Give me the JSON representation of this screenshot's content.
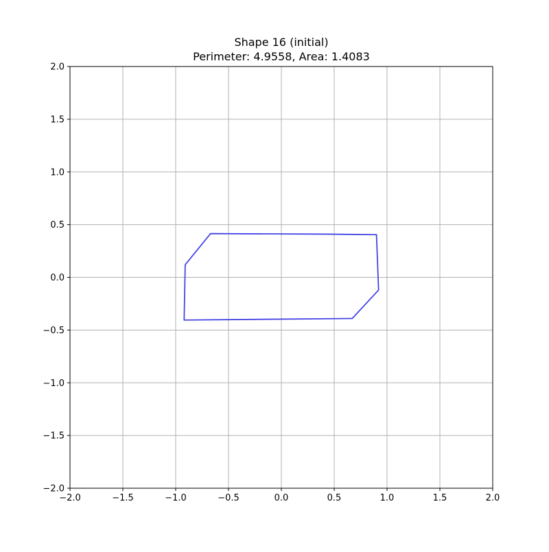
{
  "chart_data": {
    "type": "line",
    "title_line1": "Shape 16 (initial)",
    "title_line2": "Perimeter: 4.9558, Area: 1.4083",
    "xlabel": "",
    "ylabel": "",
    "xlim": [
      -2.0,
      2.0
    ],
    "ylim": [
      -2.0,
      2.0
    ],
    "grid": true,
    "x_ticks": [
      -2.0,
      -1.5,
      -1.0,
      -0.5,
      0.0,
      0.5,
      1.0,
      1.5,
      2.0
    ],
    "y_ticks": [
      -2.0,
      -1.5,
      -1.0,
      -0.5,
      0.0,
      0.5,
      1.0,
      1.5,
      2.0
    ],
    "x_tick_labels": [
      "−2.0",
      "−1.5",
      "−1.0",
      "−0.5",
      "0.0",
      "0.5",
      "1.0",
      "1.5",
      "2.0"
    ],
    "y_tick_labels": [
      "−2.0",
      "−1.5",
      "−1.0",
      "−0.5",
      "0.0",
      "0.5",
      "1.0",
      "1.5",
      "2.0"
    ],
    "series": [
      {
        "color": "#4444e6",
        "closed": true,
        "x": [
          -0.67,
          0.4,
          0.9,
          0.92,
          0.67,
          -0.92,
          -0.91,
          -0.67
        ],
        "y": [
          0.415,
          0.41,
          0.405,
          -0.12,
          -0.39,
          -0.405,
          0.12,
          0.415
        ]
      }
    ]
  }
}
